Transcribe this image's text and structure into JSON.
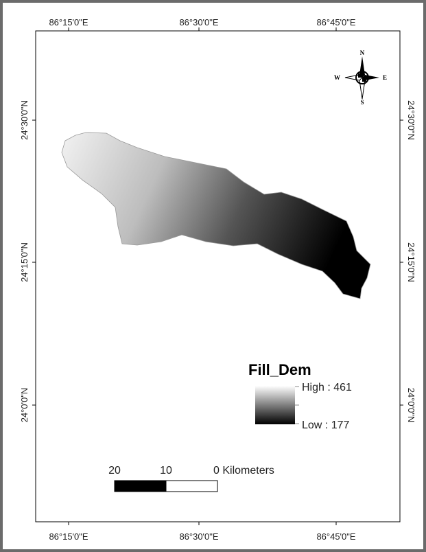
{
  "map": {
    "top_labels": [
      "86°15'0\"E",
      "86°30'0\"E",
      "86°45'0\"E"
    ],
    "bottom_labels": [
      "86°15'0\"E",
      "86°30'0\"E",
      "86°45'0\"E"
    ],
    "left_labels": [
      "24°30'0\"N",
      "24°15'0\"N",
      "24°0'0\"N"
    ],
    "right_labels": [
      "24°30'0\"N",
      "24°15'0\"N",
      "24°0'0\"N"
    ],
    "north_arrow": {
      "n": "N",
      "s": "S",
      "e": "E",
      "w": "W"
    },
    "legend": {
      "title": "Fill_Dem",
      "high": "High : 461",
      "low": "Low : 177"
    },
    "scale_bar": {
      "labels": [
        "20",
        "10",
        "0 Kilometers"
      ]
    }
  }
}
